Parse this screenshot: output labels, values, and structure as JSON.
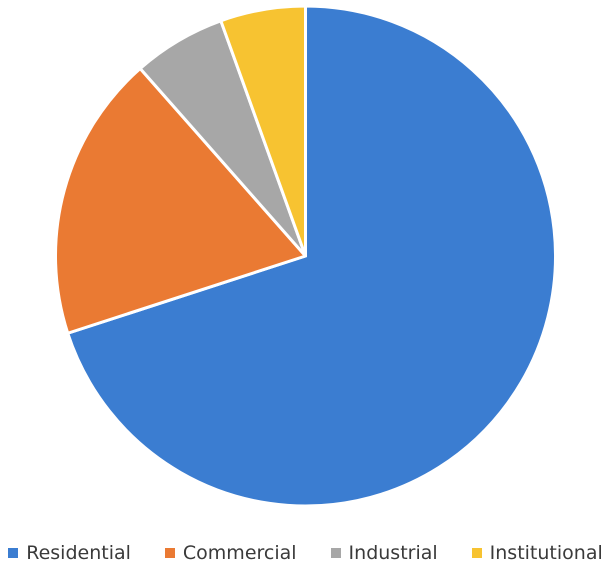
{
  "chart_data": {
    "type": "pie",
    "categories": [
      "Residential",
      "Commercial",
      "Industrial",
      "Institutional"
    ],
    "values": [
      70,
      18.5,
      6,
      5.5
    ],
    "colors": [
      "#3b7dd1",
      "#ea7a33",
      "#a7a7a7",
      "#f7c331"
    ],
    "start_angle_deg": 0,
    "direction": "clockwise",
    "legend_position": "bottom"
  }
}
